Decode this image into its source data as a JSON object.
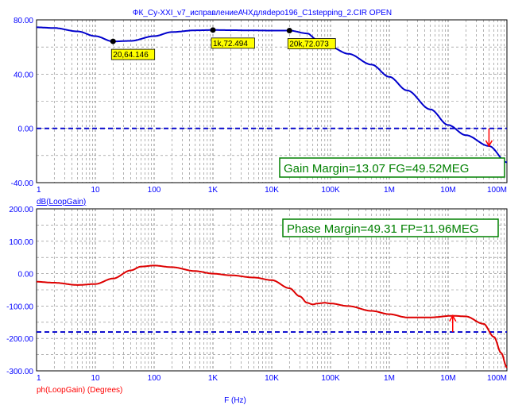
{
  "window": {
    "title": "ФК_Су-XXI_v7_исправлениеАЧХдляdepo196_C1stepping_2.CIR OPEN"
  },
  "colors": {
    "frame": "#000000",
    "grid": "#808080",
    "axis_text": "#0000ff",
    "gain_curve": "#0000cc",
    "phase_curve": "#dd0000",
    "reference_line": "#0000cc",
    "marker_arrow": "#ff0000",
    "tag_bg": "#ffff00",
    "margin_box_border": "#008000",
    "margin_box_text": "#008000",
    "gain_axis_label_color": "#0000ff",
    "phase_axis_label_color": "#ff0000"
  },
  "x_axis": {
    "scale": "log",
    "range_hz": [
      1,
      100000000
    ],
    "tick_labels": [
      "1",
      "10",
      "100",
      "1K",
      "10K",
      "100K",
      "1M",
      "10M",
      "100M"
    ],
    "label": "F (Hz)"
  },
  "chart_data": [
    {
      "type": "line",
      "name": "gain",
      "ylabel": "dB(LoopGain)",
      "ylim": [
        -40,
        80
      ],
      "y_tick_labels": [
        "80.00",
        "40.00",
        "0.00",
        "-40.00"
      ],
      "y_tick_values": [
        80,
        40,
        0,
        -40
      ],
      "grid": true,
      "reference_line": 0,
      "series": [
        {
          "x": [
            1,
            2,
            5,
            10,
            20,
            40,
            100,
            200,
            500,
            1000,
            2000,
            5000,
            10000,
            20000,
            40000,
            60000,
            100000,
            200000,
            500000,
            1000000,
            2000000,
            5000000,
            10000000,
            20000000,
            49520000,
            100000000
          ],
          "y": [
            74.5,
            74.0,
            71.5,
            68.0,
            64.1,
            64.5,
            68.0,
            71.0,
            72.3,
            72.5,
            72.4,
            72.2,
            72.1,
            72.1,
            70.0,
            65.0,
            60.0,
            55.0,
            47.0,
            38.0,
            28.0,
            14.0,
            2.5,
            -5.0,
            -13.0,
            -25.0
          ]
        }
      ],
      "markers": [
        {
          "x": 20,
          "y": 64.146,
          "label": "20,64.146"
        },
        {
          "x": 1000,
          "y": 72.494,
          "label": "1k,72.494"
        },
        {
          "x": 20000,
          "y": 72.073,
          "label": "20k,72.073"
        }
      ],
      "arrow": {
        "x": 49520000,
        "y_from": 0,
        "y_to": -13
      },
      "annotation": "Gain Margin=13.07 FG=49.52MEG",
      "annotation_position": "bottom-right"
    },
    {
      "type": "line",
      "name": "phase",
      "ylabel": "ph(LoopGain) (Degrees)",
      "ylim": [
        -300,
        200
      ],
      "y_tick_labels": [
        "200.00",
        "100.00",
        "0.00",
        "-100.00",
        "-200.00",
        "-300.00"
      ],
      "y_tick_values": [
        200,
        100,
        0,
        -100,
        -200,
        -300
      ],
      "grid": true,
      "reference_line": -180,
      "series": [
        {
          "x": [
            1,
            2,
            5,
            10,
            20,
            40,
            60,
            100,
            200,
            500,
            1000,
            2000,
            5000,
            10000,
            20000,
            30000,
            40000,
            50000,
            60000,
            80000,
            100000,
            200000,
            500000,
            1000000,
            2000000,
            5000000,
            11960000,
            20000000,
            40000000,
            60000000,
            80000000,
            100000000
          ],
          "y": [
            -25,
            -28,
            -35,
            -32,
            -15,
            10,
            22,
            25,
            20,
            8,
            0,
            -5,
            -12,
            -20,
            -45,
            -70,
            -90,
            -95,
            -92,
            -90,
            -92,
            -100,
            -115,
            -125,
            -135,
            -135,
            -130,
            -132,
            -155,
            -195,
            -245,
            -290
          ]
        }
      ],
      "arrow": {
        "x": 11960000,
        "y_from": -180,
        "y_to": -130
      },
      "annotation": "Phase Margin=49.31 FP=11.96MEG",
      "annotation_position": "top-right"
    }
  ]
}
